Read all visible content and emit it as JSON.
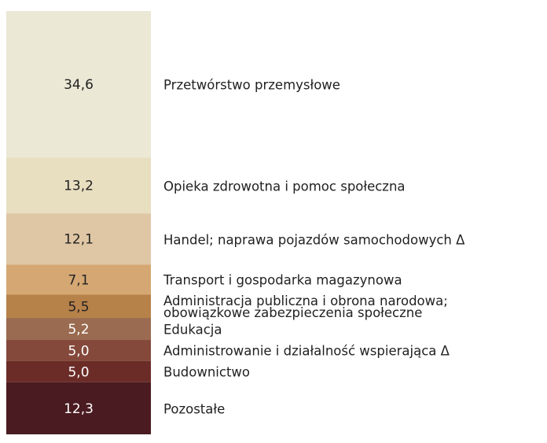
{
  "chart_data": {
    "type": "stacked-bar",
    "categories": [
      "Przetwórstwo przemysłowe",
      "Opieka zdrowotna i pomoc społeczna",
      "Handel; naprawa pojazdów samochodowych Δ",
      "Transport i gospodarka magazynowa",
      "Administracja publiczna i obrona narodowa;\nobowiązkowe zabezpieczenia społeczne",
      "Edukacja",
      "Administrowanie i działalność wspierająca Δ",
      "Budownictwo",
      "Pozostałe"
    ],
    "values": [
      34.6,
      13.2,
      12.1,
      7.1,
      5.5,
      5.2,
      5.0,
      5.0,
      12.3
    ],
    "value_labels": [
      "34,6",
      "13,2",
      "12,1",
      "7,1",
      "5,5",
      "5,2",
      "5,0",
      "5,0",
      "12,3"
    ],
    "colors": [
      "#ebe8d6",
      "#e8dec0",
      "#dfc6a4",
      "#d4a773",
      "#b7814a",
      "#9a6b50",
      "#84493b",
      "#6b2c28",
      "#4a1b20"
    ]
  }
}
